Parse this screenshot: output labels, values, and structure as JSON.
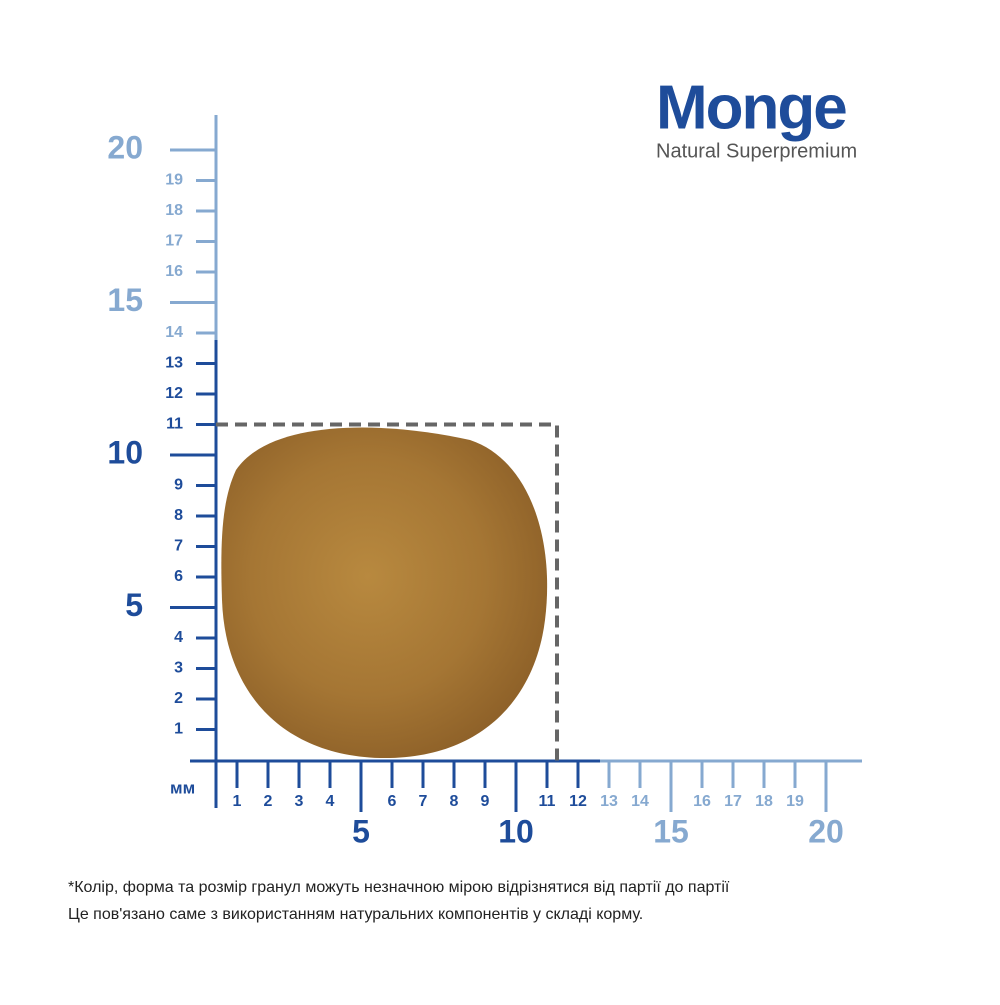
{
  "logo": {
    "brand": "Monge",
    "tagline": "Natural Superpremium"
  },
  "ruler": {
    "unit": "мм",
    "y_minor": [
      1,
      2,
      3,
      4,
      6,
      7,
      8,
      9,
      11,
      12,
      13,
      14,
      16,
      17,
      18,
      19
    ],
    "y_major": [
      5,
      10,
      15,
      20
    ],
    "x_minor": [
      1,
      2,
      3,
      4,
      6,
      7,
      8,
      9,
      11,
      12,
      13,
      14,
      16,
      17,
      18,
      19
    ],
    "x_major": [
      5,
      10,
      15,
      20
    ],
    "size_box": 11
  },
  "footnote": {
    "lines": [
      "*Колір, форма та розмір гранул можуть незначною мірою відрізнятися від партії до партії",
      "Це пов'язано саме з використанням натуральних компонентів у складі корму."
    ]
  }
}
